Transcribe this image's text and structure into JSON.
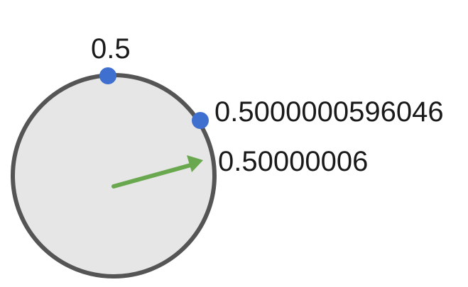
{
  "labels": {
    "top_point": "0.5",
    "right_point": "0.5000000596046",
    "arrow_value": "0.50000006"
  },
  "colors": {
    "circle_fill": "#e6e6e6",
    "circle_stroke": "#555555",
    "point_fill": "#3f6fcf",
    "arrow": "#6aa84f",
    "text": "#1a1a1a"
  }
}
